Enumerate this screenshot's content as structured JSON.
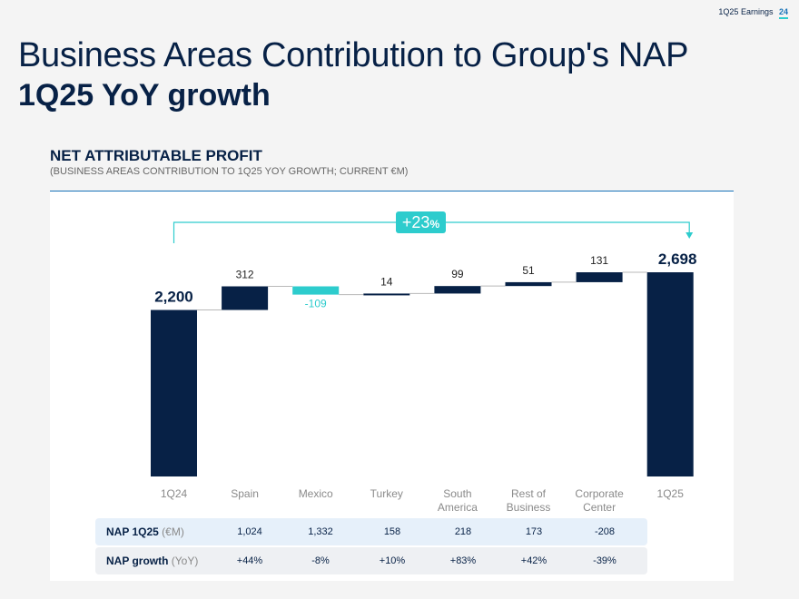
{
  "header": {
    "label": "1Q25 Earnings",
    "page": "24"
  },
  "title": {
    "line1": "Business Areas Contribution to Group's NAP",
    "line2": "1Q25 YoY growth"
  },
  "section": {
    "title": "NET ATTRIBUTABLE PROFIT",
    "subtitle": "(BUSINESS AREAS CONTRIBUTION TO 1Q25 YOY GROWTH; CURRENT €M)"
  },
  "colors": {
    "navy": "#072146",
    "teal": "#2dcccd",
    "blue": "#1973b8"
  },
  "chart_data": {
    "type": "bar",
    "subtype": "waterfall",
    "categories": [
      "1Q24",
      "Spain",
      "Mexico",
      "Turkey",
      "South America",
      "Rest of Business",
      "Corporate Center",
      "1Q25"
    ],
    "category_lines": [
      [
        "1Q24"
      ],
      [
        "Spain"
      ],
      [
        "Mexico"
      ],
      [
        "Turkey"
      ],
      [
        "South",
        "America"
      ],
      [
        "Rest of",
        "Business"
      ],
      [
        "Corporate",
        "Center"
      ],
      [
        "1Q25"
      ]
    ],
    "values": [
      2200,
      312,
      -109,
      14,
      99,
      51,
      131,
      2698
    ],
    "labels": [
      "2,200",
      "312",
      "-109",
      "14",
      "99",
      "51",
      "131",
      "2,698"
    ],
    "kinds": [
      "total",
      "delta",
      "delta",
      "delta",
      "delta",
      "delta",
      "delta",
      "total"
    ],
    "growth_label": "+23",
    "growth_unit": "%",
    "ylim": [
      0,
      2698
    ]
  },
  "table": {
    "rows": [
      {
        "label_bold": "NAP 1Q25",
        "label_unit": " (€M)",
        "values": [
          "1,024",
          "1,332",
          "158",
          "218",
          "173",
          "-208"
        ]
      },
      {
        "label_bold": "NAP growth",
        "label_unit": " (YoY)",
        "values": [
          "+44%",
          "-8%",
          "+10%",
          "+83%",
          "+42%",
          "-39%"
        ]
      }
    ]
  }
}
